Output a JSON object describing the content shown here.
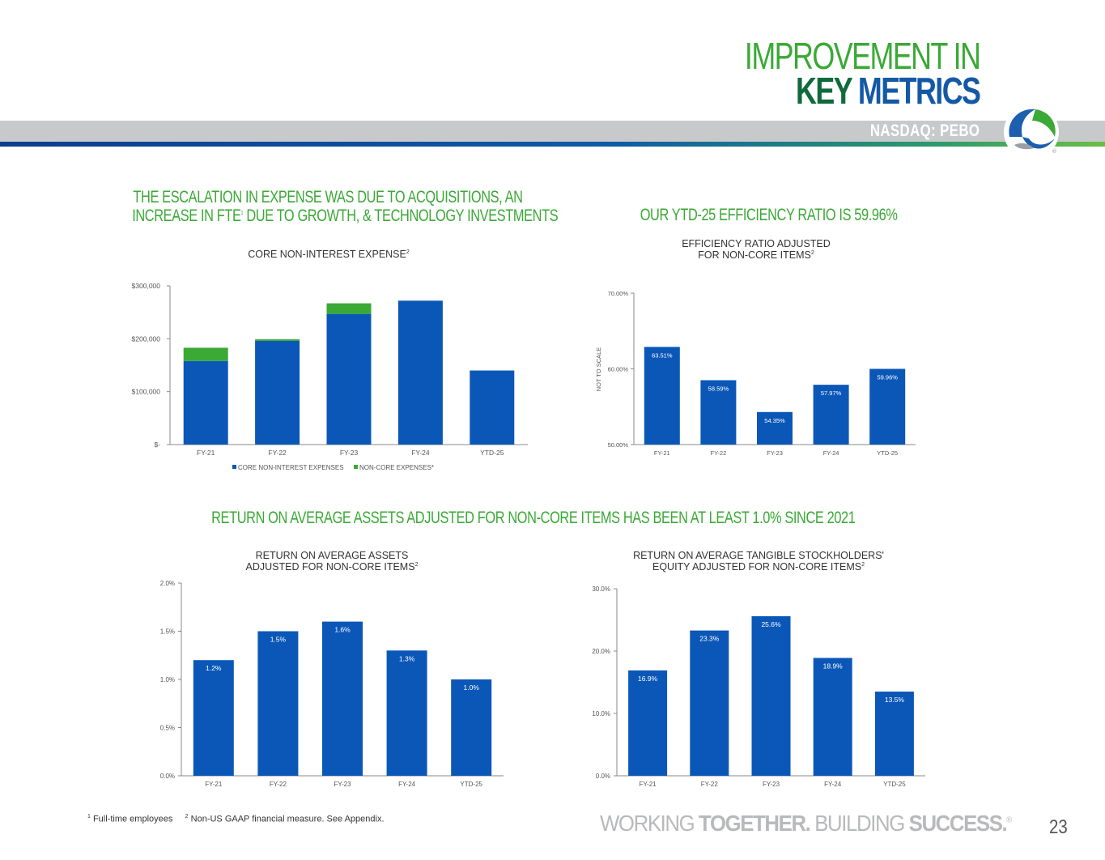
{
  "header": {
    "title_line1": "IMPROVEMENT IN",
    "title_line2_a": "KEY",
    "title_line2_b": "METRICS",
    "ticker": "NASDAQ: PEBO",
    "logo_icon": "peoples-bank-logo-icon"
  },
  "headlines": {
    "expense_line1": "THE ESCALATION IN EXPENSE WAS DUE TO ACQUISITIONS, AN",
    "expense_line2a": "INCREASE IN FTE",
    "expense_line2_sup": "1",
    "expense_line2b": " DUE TO GROWTH, & TECHNOLOGY INVESTMENTS",
    "efficiency": "OUR YTD-25 EFFICIENCY RATIO IS 59.96%",
    "roa": "RETURN ON AVERAGE ASSETS ADJUSTED FOR NON-CORE ITEMS HAS BEEN AT LEAST 1.0% SINCE 2021"
  },
  "colors": {
    "blue": "#0b57b8",
    "green": "#3aa935"
  },
  "chart_data": [
    {
      "id": "expense",
      "type": "bar",
      "stacked": true,
      "title": "CORE NON-INTEREST EXPENSE",
      "title_sup": "2",
      "categories": [
        "FY-21",
        "FY-22",
        "FY-23",
        "FY-24",
        "YTD-25"
      ],
      "series": [
        {
          "name": "CORE NON-INTEREST EXPENSES",
          "color": "#0b57b8",
          "values": [
            158000,
            196000,
            247000,
            272000,
            140000
          ]
        },
        {
          "name": "NON-CORE EXPENSES*",
          "color": "#3aa935",
          "values": [
            25000,
            3000,
            20000,
            0,
            0
          ]
        }
      ],
      "ylim": [
        0,
        300000
      ],
      "yticks": [
        0,
        100000,
        200000,
        300000
      ],
      "ytick_labels": [
        "$-",
        "$100,000",
        "$200,000",
        "$300,000"
      ],
      "legend": "bottom"
    },
    {
      "id": "efficiency",
      "type": "bar",
      "title_line1": "EFFICIENCY RATIO ADJUSTED",
      "title_line2": "FOR NON-CORE ITEMS",
      "title_sup": "2",
      "ylabel": "NOT TO SCALE",
      "categories": [
        "FY-21",
        "FY-22",
        "FY-23",
        "FY-24",
        "YTD-25"
      ],
      "values": [
        63.51,
        58.59,
        54.35,
        57.97,
        59.96
      ],
      "display_heights": [
        62.9,
        58.5,
        54.3,
        57.9,
        60.0
      ],
      "data_labels": [
        "63.51%",
        "58.59%",
        "54.35%",
        "57.97%",
        "59.96%"
      ],
      "ylim": [
        50,
        70
      ],
      "yticks": [
        50,
        60,
        70
      ],
      "ytick_labels": [
        "50.00%",
        "60.00%",
        "70.00%"
      ]
    },
    {
      "id": "roa",
      "type": "bar",
      "title_line1": "RETURN ON AVERAGE ASSETS",
      "title_line2": "ADJUSTED FOR NON-CORE ITEMS",
      "title_sup": "2",
      "categories": [
        "FY-21",
        "FY-22",
        "FY-23",
        "FY-24",
        "YTD-25"
      ],
      "values": [
        1.2,
        1.5,
        1.6,
        1.3,
        1.0
      ],
      "data_labels": [
        "1.2%",
        "1.5%",
        "1.6%",
        "1.3%",
        "1.0%"
      ],
      "ylim": [
        0,
        2.0
      ],
      "yticks": [
        0,
        0.5,
        1.0,
        1.5,
        2.0
      ],
      "ytick_labels": [
        "0.0%",
        "0.5%",
        "1.0%",
        "1.5%",
        "2.0%"
      ]
    },
    {
      "id": "rotce",
      "type": "bar",
      "title_line1": "RETURN ON AVERAGE TANGIBLE STOCKHOLDERS'",
      "title_line2": "EQUITY ADJUSTED FOR NON-CORE ITEMS",
      "title_sup": "2",
      "categories": [
        "FY-21",
        "FY-22",
        "FY-23",
        "FY-24",
        "YTD-25"
      ],
      "values": [
        16.9,
        23.3,
        25.6,
        18.9,
        13.5
      ],
      "data_labels": [
        "16.9%",
        "23.3%",
        "25.6%",
        "18.9%",
        "13.5%"
      ],
      "ylim": [
        0,
        30
      ],
      "yticks": [
        0,
        10,
        20,
        30
      ],
      "ytick_labels": [
        "0.0%",
        "10.0%",
        "20.0%",
        "30.0%"
      ]
    }
  ],
  "chart_titles": {
    "expense": "CORE NON-INTEREST EXPENSE",
    "expense_sup": "2",
    "eff_line1": "EFFICIENCY RATIO ADJUSTED",
    "eff_line2": "FOR NON-CORE ITEMS",
    "eff_sup": "2",
    "roa_line1": "RETURN ON AVERAGE ASSETS",
    "roa_line2": "ADJUSTED FOR NON-CORE ITEMS",
    "roa_sup": "2",
    "rotce_line1": "RETURN ON AVERAGE TANGIBLE STOCKHOLDERS'",
    "rotce_line2": "EQUITY ADJUSTED FOR NON-CORE ITEMS",
    "rotce_sup": "2"
  },
  "footer": {
    "note1_sup": "1",
    "note1": " Full-time employees",
    "note2_sup": "2",
    "note2": " Non-US GAAP financial measure. See Appendix.",
    "tag_a": "WORKING ",
    "tag_b": "TOGETHER.",
    "tag_c": " BUILDING ",
    "tag_d": "SUCCESS.",
    "tag_reg": "®",
    "page_number": "23"
  }
}
